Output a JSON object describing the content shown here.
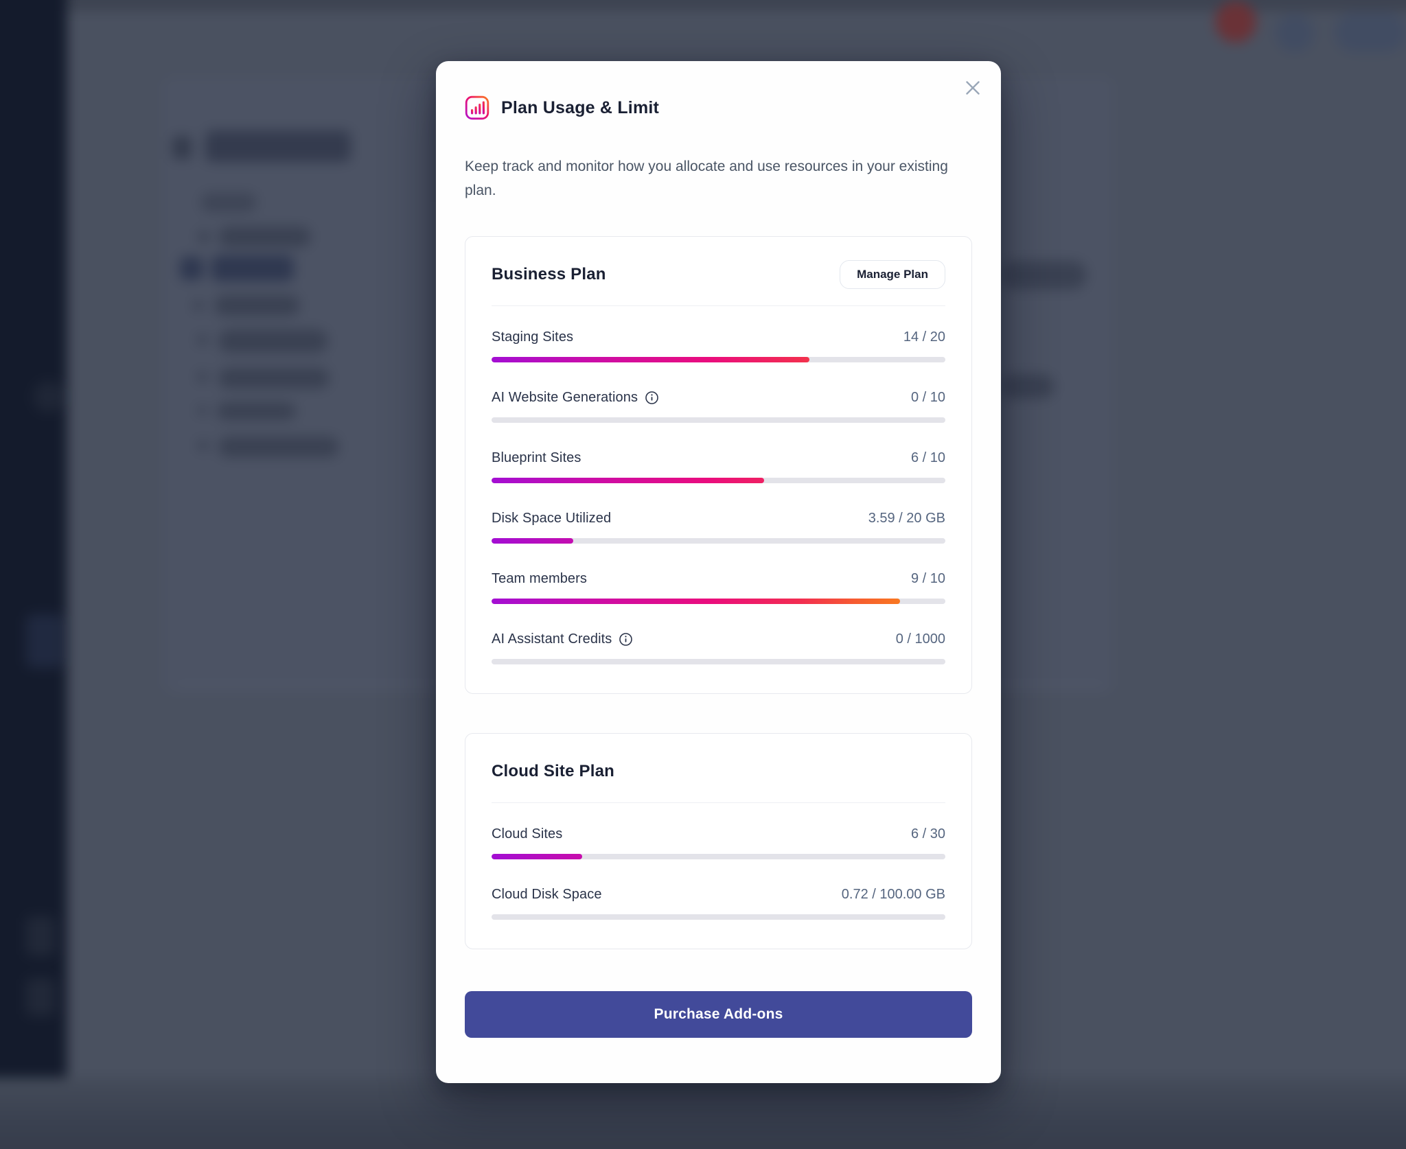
{
  "modal": {
    "title": "Plan Usage & Limit",
    "description": "Keep track and monitor how you allocate and use resources in your existing plan.",
    "purchase_label": "Purchase Add-ons",
    "plans": [
      {
        "name": "Business Plan",
        "action": "Manage Plan",
        "rows": [
          {
            "label": "Staging Sites",
            "info": false,
            "display": "14 / 20",
            "used": 14,
            "limit": 20,
            "pct": 70
          },
          {
            "label": "AI Website Generations",
            "info": true,
            "display": "0 / 10",
            "used": 0,
            "limit": 10,
            "pct": 0
          },
          {
            "label": "Blueprint Sites",
            "info": false,
            "display": "6 / 10",
            "used": 6,
            "limit": 10,
            "pct": 60
          },
          {
            "label": "Disk Space Utilized",
            "info": false,
            "display": "3.59 / 20 GB",
            "used": 3.59,
            "limit": 20,
            "pct": 17.95
          },
          {
            "label": "Team members",
            "info": false,
            "display": "9 / 10",
            "used": 9,
            "limit": 10,
            "pct": 90
          },
          {
            "label": "AI Assistant Credits",
            "info": true,
            "display": "0 / 1000",
            "used": 0,
            "limit": 1000,
            "pct": 0
          }
        ]
      },
      {
        "name": "Cloud Site Plan",
        "action": null,
        "rows": [
          {
            "label": "Cloud Sites",
            "info": false,
            "display": "6 / 30",
            "used": 6,
            "limit": 30,
            "pct": 20
          },
          {
            "label": "Cloud Disk Space",
            "info": false,
            "display": "0.72 / 100.00 GB",
            "used": 0.72,
            "limit": 100,
            "pct": 0.72
          }
        ]
      }
    ]
  },
  "colors": {
    "bar_gradient": "linear-gradient(90deg,#a30ed3 0%,#cb0da8 22%,#ea0d7d 48%,#f22d51 68%,#f65b31 80%,#f9831a 94%)",
    "track": "#e3e3e9",
    "accent_button": "#424a9a",
    "title_text": "#1a2033",
    "value_text": "#55657f",
    "sidebar": "#141b2c",
    "backdrop": "#4a5160",
    "icon_gradient": [
      "#b312c9",
      "#ed136d",
      "#fb7e22"
    ]
  }
}
